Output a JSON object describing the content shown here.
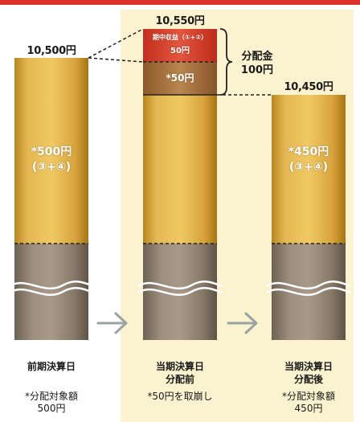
{
  "columns": [
    {
      "top_value": "10,500円",
      "segment_amount": "*500円",
      "segment_formula": "(③+④)",
      "caption_lines": [
        "前期決算日"
      ],
      "note_lines": [
        "*分配対象額",
        "500円"
      ]
    },
    {
      "top_value": "10,550円",
      "income_line1": "期中収益（①+②）",
      "income_line2": "50円",
      "drawdown_label": "*50円",
      "caption_lines": [
        "当期決算日",
        "分配前"
      ],
      "note_lines": [
        "*50円を取崩し"
      ]
    },
    {
      "top_value": "10,450円",
      "segment_amount": "*450円",
      "segment_formula": "(③+④)",
      "caption_lines": [
        "当期決算日",
        "分配後"
      ],
      "note_lines": [
        "*分配対象額",
        "450円"
      ]
    }
  ],
  "distribution": {
    "line1": "分配金",
    "line2": "100円"
  },
  "colors": {
    "accent_red": "#d9302a",
    "gold": "#d9a83a",
    "gray_base": "#8d8070",
    "income_red": "#d8412c",
    "drawdown_brown": "#a8743f",
    "panel": "#fbf3cf"
  },
  "icons": [
    "arrow-right-icon",
    "arrow-right-icon"
  ]
}
